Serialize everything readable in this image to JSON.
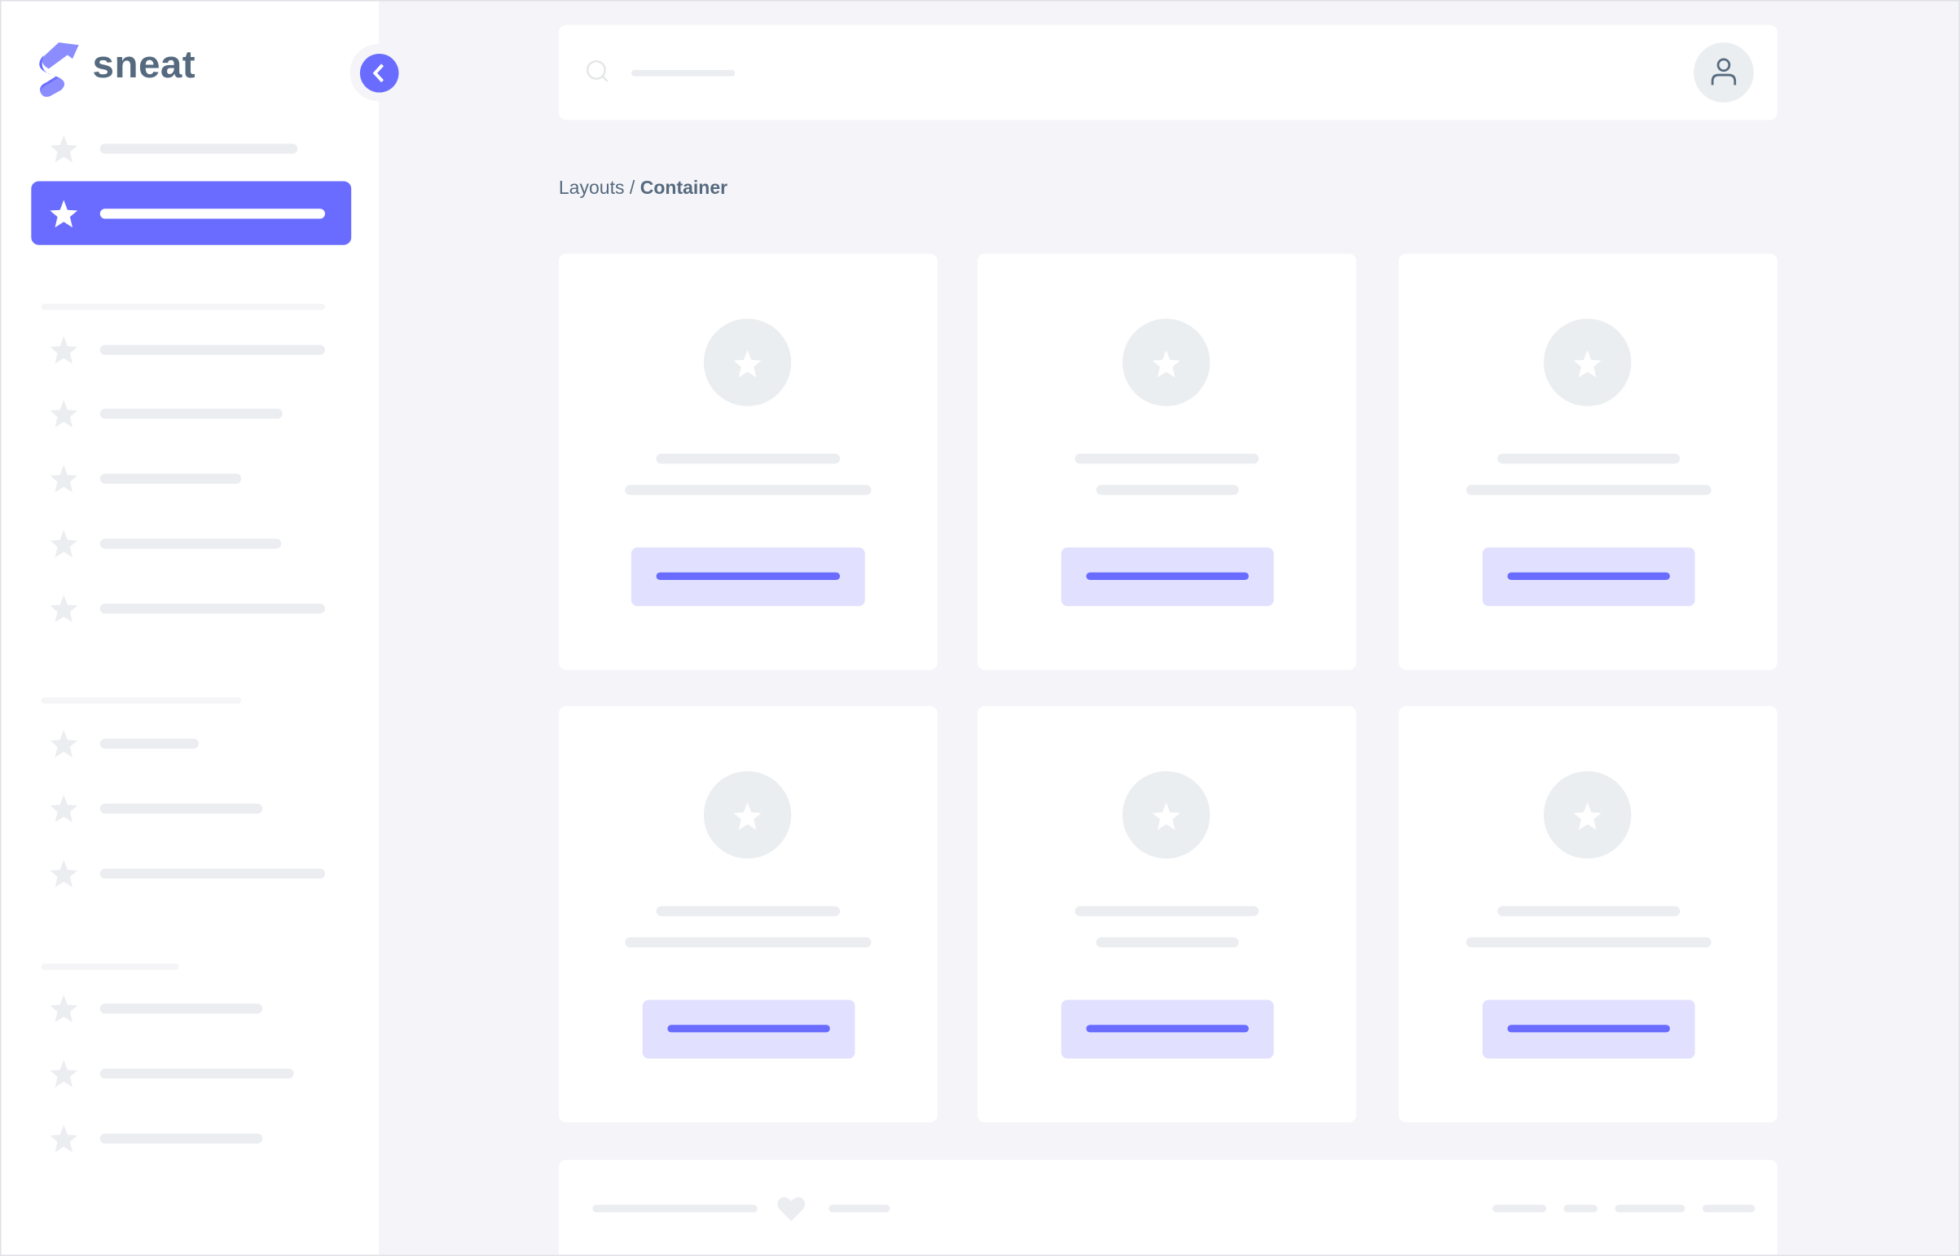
{
  "app": {
    "logo_text": "sneat"
  },
  "breadcrumb": {
    "parent": "Layouts",
    "separator": " / ",
    "current": "Container"
  },
  "colors": {
    "primary": "#696cff",
    "primary_light": "#e1e1ff",
    "background": "#f5f5f9",
    "text": "#566a7f",
    "skeleton": "#ebedf0"
  },
  "icons": {
    "logo": "sneat-logo-icon",
    "collapse": "chevron-left-icon",
    "nav": "star-icon",
    "search": "search-icon",
    "user": "user-icon",
    "footer": "heart-icon"
  },
  "sidebar": {
    "active_index": 1,
    "sections": 4,
    "item_count": 12
  },
  "main": {
    "card_count": 6
  }
}
